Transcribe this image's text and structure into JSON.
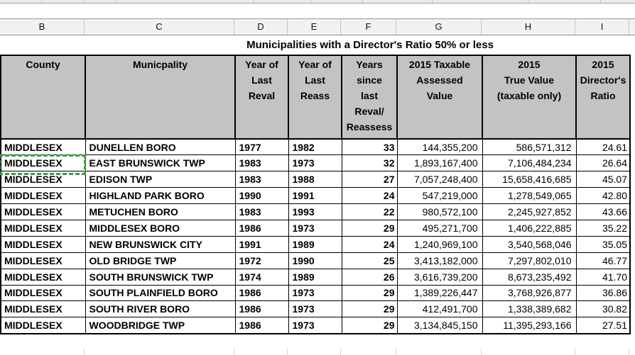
{
  "column_header_strip": {
    "letters": [
      "B",
      "C",
      "D",
      "E",
      "F",
      "G",
      "H",
      "I"
    ]
  },
  "title": "Municipalities with a Director's Ratio 50% or less",
  "marquee": {
    "color": "#2fa33b"
  },
  "table": {
    "headers": [
      {
        "key": "county",
        "label": "County"
      },
      {
        "key": "municipality",
        "label": "Municpality"
      },
      {
        "key": "reval",
        "label": "Year of\nLast\nReval"
      },
      {
        "key": "reass",
        "label": "Year of\nLast\nReass"
      },
      {
        "key": "years_since",
        "label": "Years\nsince\nlast\nReval/\nReassess"
      },
      {
        "key": "assessed",
        "label": "2015 Taxable\nAssessed\nValue"
      },
      {
        "key": "true_value",
        "label": "2015\nTrue Value\n(taxable only)"
      },
      {
        "key": "ratio",
        "label": "2015\nDirector's\nRatio"
      }
    ],
    "rows": [
      {
        "county": "MIDDLESEX",
        "municipality": "DUNELLEN BORO",
        "reval": "1977",
        "reass": "1982",
        "years_since": "33",
        "assessed": "144,355,200",
        "true_value": "586,571,312",
        "ratio": "24.61"
      },
      {
        "county": "MIDDLESEX",
        "municipality": "EAST BRUNSWICK TWP",
        "reval": "1983",
        "reass": "1973",
        "years_since": "32",
        "assessed": "1,893,167,400",
        "true_value": "7,106,484,234",
        "ratio": "26.64"
      },
      {
        "county": "MIDDLESEX",
        "municipality": "EDISON TWP",
        "reval": "1983",
        "reass": "1988",
        "years_since": "27",
        "assessed": "7,057,248,400",
        "true_value": "15,658,416,685",
        "ratio": "45.07"
      },
      {
        "county": "MIDDLESEX",
        "municipality": "HIGHLAND PARK BORO",
        "reval": "1990",
        "reass": "1991",
        "years_since": "24",
        "assessed": "547,219,000",
        "true_value": "1,278,549,065",
        "ratio": "42.80"
      },
      {
        "county": "MIDDLESEX",
        "municipality": "METUCHEN BORO",
        "reval": "1983",
        "reass": "1993",
        "years_since": "22",
        "assessed": "980,572,100",
        "true_value": "2,245,927,852",
        "ratio": "43.66"
      },
      {
        "county": "MIDDLESEX",
        "municipality": "MIDDLESEX BORO",
        "reval": "1986",
        "reass": "1973",
        "years_since": "29",
        "assessed": "495,271,700",
        "true_value": "1,406,222,885",
        "ratio": "35.22"
      },
      {
        "county": "MIDDLESEX",
        "municipality": "NEW BRUNSWICK CITY",
        "reval": "1991",
        "reass": "1989",
        "years_since": "24",
        "assessed": "1,240,969,100",
        "true_value": "3,540,568,046",
        "ratio": "35.05"
      },
      {
        "county": "MIDDLESEX",
        "municipality": "OLD BRIDGE TWP",
        "reval": "1972",
        "reass": "1990",
        "years_since": "25",
        "assessed": "3,413,182,000",
        "true_value": "7,297,802,010",
        "ratio": "46.77"
      },
      {
        "county": "MIDDLESEX",
        "municipality": "SOUTH BRUNSWICK TWP",
        "reval": "1974",
        "reass": "1989",
        "years_since": "26",
        "assessed": "3,616,739,200",
        "true_value": "8,673,235,492",
        "ratio": "41.70"
      },
      {
        "county": "MIDDLESEX",
        "municipality": "SOUTH PLAINFIELD BORO",
        "reval": "1986",
        "reass": "1973",
        "years_since": "29",
        "assessed": "1,389,226,447",
        "true_value": "3,768,926,877",
        "ratio": "36.86"
      },
      {
        "county": "MIDDLESEX",
        "municipality": "SOUTH RIVER BORO",
        "reval": "1986",
        "reass": "1973",
        "years_since": "29",
        "assessed": "412,491,700",
        "true_value": "1,338,389,682",
        "ratio": "30.82"
      },
      {
        "county": "MIDDLESEX",
        "municipality": "WOODBRIDGE TWP",
        "reval": "1986",
        "reass": "1973",
        "years_since": "29",
        "assessed": "3,134,845,150",
        "true_value": "11,395,293,166",
        "ratio": "27.51"
      }
    ]
  }
}
